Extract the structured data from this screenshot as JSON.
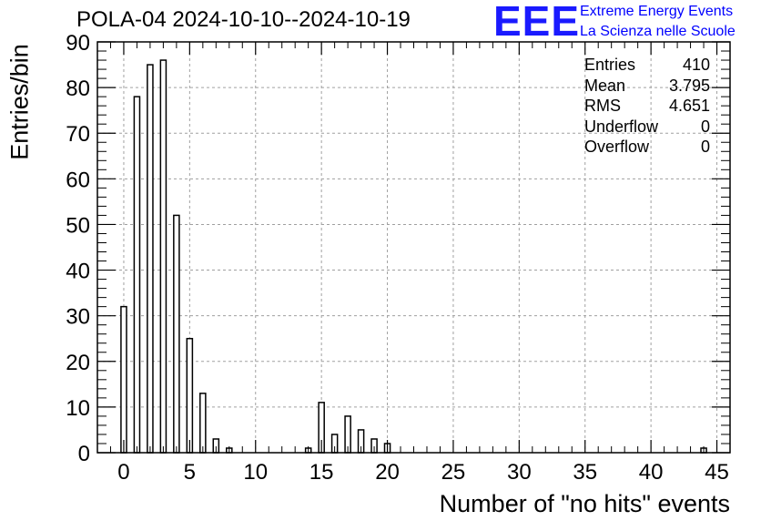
{
  "chart_data": {
    "type": "bar",
    "title": "POLA-04 2024-10-10--2024-10-19",
    "xlabel": "Number of \"no hits\" events",
    "ylabel": "Entries/bin",
    "xlim": [
      -2,
      46
    ],
    "ylim": [
      0,
      90
    ],
    "x_ticks": [
      0,
      5,
      10,
      15,
      20,
      25,
      30,
      35,
      40,
      45
    ],
    "y_ticks": [
      0,
      10,
      20,
      30,
      40,
      50,
      60,
      70,
      80,
      90
    ],
    "grid": true,
    "bins": [
      {
        "x": 0,
        "value": 32
      },
      {
        "x": 1,
        "value": 78
      },
      {
        "x": 2,
        "value": 85
      },
      {
        "x": 3,
        "value": 86
      },
      {
        "x": 4,
        "value": 52
      },
      {
        "x": 5,
        "value": 25
      },
      {
        "x": 6,
        "value": 13
      },
      {
        "x": 7,
        "value": 3
      },
      {
        "x": 8,
        "value": 1
      },
      {
        "x": 14,
        "value": 1
      },
      {
        "x": 15,
        "value": 11
      },
      {
        "x": 16,
        "value": 4
      },
      {
        "x": 17,
        "value": 8
      },
      {
        "x": 18,
        "value": 5
      },
      {
        "x": 19,
        "value": 3
      },
      {
        "x": 20,
        "value": 2
      },
      {
        "x": 44,
        "value": 1
      }
    ],
    "stats": [
      {
        "label": "Entries",
        "value": "410"
      },
      {
        "label": "Mean",
        "value": "3.795"
      },
      {
        "label": "RMS",
        "value": "4.651"
      },
      {
        "label": "Underflow",
        "value": "0"
      },
      {
        "label": "Overflow",
        "value": "0"
      }
    ]
  },
  "logo": {
    "text": "EEE",
    "line1": "Extreme Energy Events",
    "line2": "La Scienza nelle Scuole",
    "color": "#1a1aff"
  }
}
